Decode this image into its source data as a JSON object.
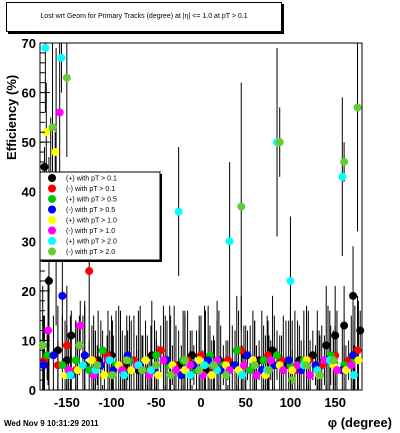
{
  "title": "Lost wrt Geom for Primary Tracks (degree) at |η| <= 1.0 at pT > 0.1",
  "xlabel": "φ (degree)",
  "ylabel": "Efficiency (%)",
  "timestamp": "Wed Nov  9 10:31:29 2011",
  "chart_data": {
    "type": "scatter",
    "xlim": [
      -180,
      180
    ],
    "ylim": [
      0,
      70
    ],
    "xticks": [
      -150,
      -100,
      -50,
      0,
      50,
      100,
      150
    ],
    "yticks": [
      0,
      10,
      20,
      30,
      40,
      50,
      60,
      70
    ],
    "grid": false,
    "legend_position": "middle-left",
    "series": [
      {
        "name": "(+) with pT > 0.1",
        "color": "#000000",
        "points": [
          [
            -175,
            45
          ],
          [
            -170,
            22
          ],
          [
            -160,
            8
          ],
          [
            -150,
            6
          ],
          [
            -145,
            11
          ],
          [
            -130,
            5
          ],
          [
            -115,
            6
          ],
          [
            -100,
            7
          ],
          [
            -85,
            5
          ],
          [
            -70,
            4
          ],
          [
            -55,
            7
          ],
          [
            -40,
            6
          ],
          [
            -25,
            5
          ],
          [
            -10,
            7
          ],
          [
            5,
            4
          ],
          [
            20,
            6
          ],
          [
            35,
            5
          ],
          [
            50,
            7
          ],
          [
            65,
            6
          ],
          [
            80,
            8
          ],
          [
            95,
            5
          ],
          [
            110,
            6
          ],
          [
            125,
            7
          ],
          [
            140,
            9
          ],
          [
            150,
            11
          ],
          [
            160,
            13
          ],
          [
            170,
            19
          ],
          [
            178,
            12
          ]
        ]
      },
      {
        "name": "(-) with pT > 0.1",
        "color": "#ff0000",
        "points": [
          [
            -175,
            6
          ],
          [
            -168,
            42
          ],
          [
            -160,
            5
          ],
          [
            -150,
            9
          ],
          [
            -140,
            4
          ],
          [
            -125,
            24
          ],
          [
            -120,
            6
          ],
          [
            -105,
            7
          ],
          [
            -90,
            5
          ],
          [
            -75,
            6
          ],
          [
            -60,
            4
          ],
          [
            -45,
            8
          ],
          [
            -30,
            5
          ],
          [
            -15,
            6
          ],
          [
            0,
            7
          ],
          [
            15,
            4
          ],
          [
            30,
            6
          ],
          [
            45,
            8
          ],
          [
            60,
            5
          ],
          [
            75,
            7
          ],
          [
            90,
            6
          ],
          [
            105,
            4
          ],
          [
            120,
            6
          ],
          [
            135,
            5
          ],
          [
            150,
            7
          ],
          [
            165,
            6
          ],
          [
            175,
            8
          ]
        ]
      },
      {
        "name": "(+) with pT > 0.5",
        "color": "#00c800",
        "points": [
          [
            -172,
            7
          ],
          [
            -162,
            41
          ],
          [
            -155,
            5
          ],
          [
            -140,
            6
          ],
          [
            -125,
            4
          ],
          [
            -110,
            8
          ],
          [
            -95,
            5
          ],
          [
            -80,
            6
          ],
          [
            -65,
            4
          ],
          [
            -50,
            7
          ],
          [
            -35,
            5
          ],
          [
            -20,
            6
          ],
          [
            -5,
            4
          ],
          [
            10,
            7
          ],
          [
            25,
            5
          ],
          [
            40,
            8
          ],
          [
            55,
            4
          ],
          [
            70,
            6
          ],
          [
            85,
            7
          ],
          [
            100,
            5
          ],
          [
            115,
            6
          ],
          [
            130,
            4
          ],
          [
            145,
            7
          ],
          [
            160,
            5
          ],
          [
            172,
            6
          ]
        ]
      },
      {
        "name": "(-) with pT > 0.5",
        "color": "#0000ff",
        "points": [
          [
            -176,
            5
          ],
          [
            -165,
            7
          ],
          [
            -155,
            19
          ],
          [
            -145,
            3
          ],
          [
            -130,
            7
          ],
          [
            -112,
            5
          ],
          [
            -98,
            4
          ],
          [
            -82,
            7
          ],
          [
            -68,
            5
          ],
          [
            -52,
            4
          ],
          [
            -38,
            6
          ],
          [
            -22,
            3
          ],
          [
            -8,
            5
          ],
          [
            8,
            6
          ],
          [
            22,
            4
          ],
          [
            38,
            5
          ],
          [
            52,
            7
          ],
          [
            68,
            4
          ],
          [
            82,
            5
          ],
          [
            98,
            6
          ],
          [
            112,
            4
          ],
          [
            128,
            5
          ],
          [
            142,
            6
          ],
          [
            158,
            4
          ],
          [
            170,
            7
          ]
        ]
      },
      {
        "name": "(+) with pT > 1.0",
        "color": "#ffff00",
        "points": [
          [
            -173,
            52
          ],
          [
            -163,
            48
          ],
          [
            -152,
            3
          ],
          [
            -138,
            4
          ],
          [
            -122,
            6
          ],
          [
            -108,
            3
          ],
          [
            -92,
            5
          ],
          [
            -78,
            4
          ],
          [
            -62,
            6
          ],
          [
            -48,
            3
          ],
          [
            -32,
            5
          ],
          [
            -18,
            4
          ],
          [
            -2,
            6
          ],
          [
            12,
            3
          ],
          [
            28,
            5
          ],
          [
            42,
            4
          ],
          [
            58,
            6
          ],
          [
            72,
            3
          ],
          [
            88,
            5
          ],
          [
            102,
            4
          ],
          [
            118,
            6
          ],
          [
            132,
            3
          ],
          [
            148,
            5
          ],
          [
            162,
            4
          ],
          [
            176,
            6
          ]
        ]
      },
      {
        "name": "(-) with pT > 1.0",
        "color": "#ff00ff",
        "points": [
          [
            -171,
            12
          ],
          [
            -158,
            56
          ],
          [
            -148,
            4
          ],
          [
            -135,
            13
          ],
          [
            -120,
            3
          ],
          [
            -104,
            6
          ],
          [
            -88,
            4
          ],
          [
            -72,
            5
          ],
          [
            -58,
            3
          ],
          [
            -42,
            6
          ],
          [
            -28,
            4
          ],
          [
            -12,
            5
          ],
          [
            2,
            3
          ],
          [
            18,
            6
          ],
          [
            32,
            4
          ],
          [
            48,
            5
          ],
          [
            62,
            3
          ],
          [
            78,
            6
          ],
          [
            92,
            4
          ],
          [
            108,
            5
          ],
          [
            122,
            3
          ],
          [
            138,
            6
          ],
          [
            152,
            4
          ],
          [
            168,
            5
          ]
        ]
      },
      {
        "name": "(+) with pT > 2.0",
        "color": "#00ffff",
        "points": [
          [
            -174,
            69
          ],
          [
            -156,
            67
          ],
          [
            -146,
            3
          ],
          [
            -132,
            5
          ],
          [
            -118,
            4
          ],
          [
            -102,
            6
          ],
          [
            -86,
            3
          ],
          [
            -70,
            5
          ],
          [
            -56,
            4
          ],
          [
            -25,
            36
          ],
          [
            -12,
            3
          ],
          [
            4,
            5
          ],
          [
            18,
            4
          ],
          [
            32,
            30
          ],
          [
            46,
            3
          ],
          [
            60,
            5
          ],
          [
            74,
            4
          ],
          [
            85,
            50
          ],
          [
            100,
            22
          ],
          [
            115,
            5
          ],
          [
            130,
            4
          ],
          [
            144,
            6
          ],
          [
            158,
            43
          ],
          [
            171,
            3
          ]
        ]
      },
      {
        "name": "(-) with pT > 2.0",
        "color": "#66cc33",
        "points": [
          [
            -177,
            9
          ],
          [
            -166,
            53
          ],
          [
            -150,
            63
          ],
          [
            -136,
            9
          ],
          [
            -116,
            5
          ],
          [
            -99,
            3
          ],
          [
            -83,
            6
          ],
          [
            -66,
            4
          ],
          [
            -50,
            5
          ],
          [
            -34,
            3
          ],
          [
            -18,
            6
          ],
          [
            -2,
            4
          ],
          [
            14,
            5
          ],
          [
            28,
            3
          ],
          [
            45,
            37
          ],
          [
            60,
            5
          ],
          [
            76,
            4
          ],
          [
            88,
            50
          ],
          [
            102,
            2
          ],
          [
            118,
            5
          ],
          [
            133,
            3
          ],
          [
            148,
            6
          ],
          [
            160,
            46
          ],
          [
            175,
            57
          ]
        ]
      }
    ]
  }
}
